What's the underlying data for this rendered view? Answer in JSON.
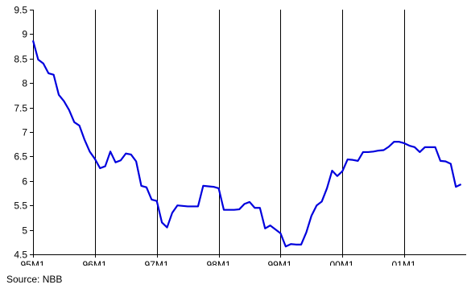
{
  "chart_data": {
    "type": "line",
    "title": "",
    "xlabel": "",
    "ylabel": "",
    "ylim": [
      4.5,
      9.5
    ],
    "yticks": [
      4.5,
      5,
      5.5,
      6,
      6.5,
      7,
      7.5,
      8,
      8.5,
      9,
      9.5
    ],
    "ytick_labels": [
      "4.5",
      "5",
      "5.5",
      "6",
      "6.5",
      "7",
      "7.5",
      "8",
      "8.5",
      "9",
      "9.5"
    ],
    "xlim": [
      "1995-01",
      "2001-12"
    ],
    "xticks": [
      "1995-01",
      "1996-01",
      "1997-01",
      "1998-01",
      "1999-01",
      "2000-01",
      "2001-01"
    ],
    "xtick_labels": [
      "95M1",
      "96M1",
      "97M1",
      "98M1",
      "99M1",
      "00M1",
      "01M1"
    ],
    "grid": "vertical lines at year ticks",
    "line_color": "#0000dd",
    "series": [
      {
        "x": [
          "1995-01",
          "1995-02",
          "1995-03",
          "1995-04",
          "1995-05",
          "1995-06",
          "1995-07",
          "1995-08",
          "1995-09",
          "1995-10",
          "1995-11",
          "1995-12",
          "1996-01",
          "1996-02",
          "1996-03",
          "1996-04",
          "1996-05",
          "1996-06",
          "1996-07",
          "1996-08",
          "1996-09",
          "1996-10",
          "1996-11",
          "1996-12",
          "1997-01",
          "1997-02",
          "1997-03",
          "1997-04",
          "1997-05",
          "1997-06",
          "1997-07",
          "1997-08",
          "1997-09",
          "1997-10",
          "1997-11",
          "1997-12",
          "1998-01",
          "1998-02",
          "1998-03",
          "1998-04",
          "1998-05",
          "1998-06",
          "1998-07",
          "1998-08",
          "1998-09",
          "1998-10",
          "1998-11",
          "1998-12",
          "1999-01",
          "1999-02",
          "1999-03",
          "1999-04",
          "1999-05",
          "1999-06",
          "1999-07",
          "1999-08",
          "1999-09",
          "1999-10",
          "1999-11",
          "1999-12",
          "2000-01",
          "2000-02",
          "2000-03",
          "2000-04",
          "2000-05",
          "2000-06",
          "2000-07",
          "2000-08",
          "2000-09",
          "2000-10",
          "2000-11",
          "2000-12",
          "2001-01",
          "2001-02",
          "2001-03",
          "2001-04",
          "2001-05",
          "2001-06",
          "2001-07",
          "2001-08",
          "2001-09",
          "2001-10",
          "2001-11",
          "2001-12"
        ],
        "values": [
          8.87,
          8.48,
          8.4,
          8.2,
          8.17,
          7.76,
          7.63,
          7.45,
          7.2,
          7.13,
          6.84,
          6.6,
          6.45,
          6.26,
          6.3,
          6.6,
          6.38,
          6.42,
          6.56,
          6.54,
          6.4,
          5.9,
          5.87,
          5.62,
          5.59,
          5.15,
          5.05,
          5.35,
          5.5,
          5.49,
          5.48,
          5.48,
          5.48,
          5.9,
          5.89,
          5.88,
          5.85,
          5.41,
          5.41,
          5.41,
          5.42,
          5.53,
          5.57,
          5.45,
          5.45,
          5.03,
          5.09,
          5.01,
          4.93,
          4.66,
          4.71,
          4.7,
          4.7,
          4.95,
          5.29,
          5.5,
          5.58,
          5.85,
          6.21,
          6.1,
          6.2,
          6.44,
          6.43,
          6.41,
          6.59,
          6.59,
          6.6,
          6.62,
          6.63,
          6.7,
          6.8,
          6.8,
          6.77,
          6.72,
          6.69,
          6.59,
          6.69,
          6.69,
          6.69,
          6.41,
          6.4,
          6.35,
          5.88,
          5.93
        ]
      }
    ]
  },
  "footer": {
    "source": "Source: NBB"
  }
}
